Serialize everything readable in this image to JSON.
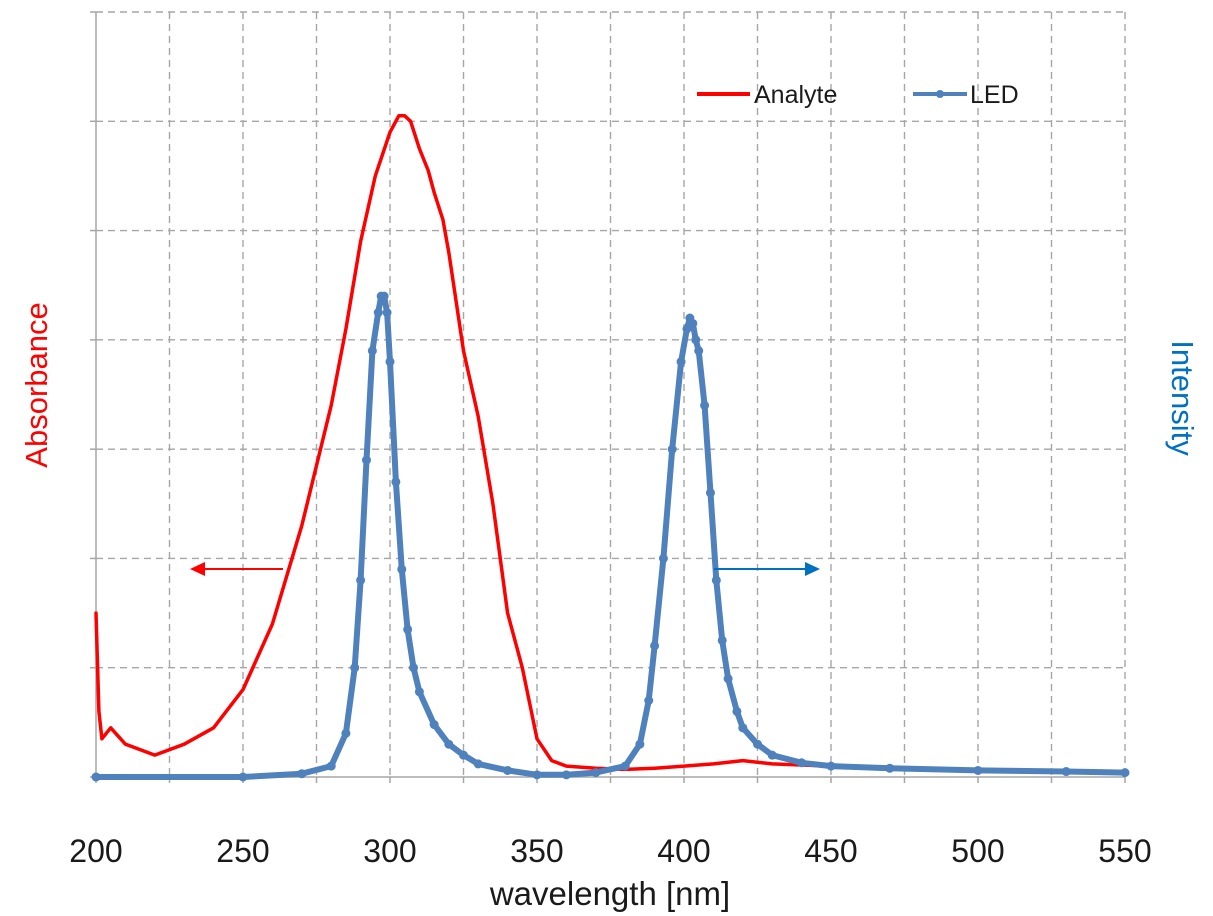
{
  "chart_data": {
    "type": "line",
    "title": "",
    "xlabel": "wavelength [nm]",
    "ylabel_left": "Absorbance",
    "ylabel_right": "Intensity",
    "xlim": [
      200,
      550
    ],
    "ylim": [
      0,
      7
    ],
    "x_ticks": [
      200,
      250,
      300,
      350,
      400,
      450,
      500,
      550
    ],
    "x_tick_labels": [
      "200",
      "250",
      "300",
      "350",
      "400",
      "450",
      "500",
      "550"
    ],
    "y_tick_labels_shown": false,
    "y_gridlines": [
      1,
      2,
      3,
      4,
      5,
      6,
      7
    ],
    "grid": true,
    "grid_style": "dashed",
    "legend_position": "top-right",
    "series": [
      {
        "name": "Analyte",
        "color": "#ff0000",
        "marker": "none",
        "axis": "left",
        "x": [
          200,
          201,
          202,
          205,
          210,
          220,
          230,
          240,
          250,
          260,
          270,
          280,
          285,
          290,
          295,
          300,
          303,
          305,
          307,
          310,
          313,
          315,
          318,
          320,
          325,
          330,
          335,
          340,
          345,
          350,
          355,
          360,
          370,
          380,
          390,
          400,
          410,
          420,
          430,
          450,
          470,
          500,
          520,
          550
        ],
        "y": [
          1.5,
          0.6,
          0.35,
          0.45,
          0.3,
          0.2,
          0.3,
          0.45,
          0.8,
          1.4,
          2.3,
          3.4,
          4.1,
          4.9,
          5.5,
          5.9,
          6.05,
          6.05,
          6.0,
          5.75,
          5.55,
          5.35,
          5.1,
          4.8,
          3.9,
          3.3,
          2.5,
          1.5,
          1.0,
          0.35,
          0.15,
          0.1,
          0.08,
          0.07,
          0.08,
          0.1,
          0.12,
          0.15,
          0.12,
          0.1,
          0.08,
          0.07,
          0.06,
          0.05
        ]
      },
      {
        "name": "LED",
        "color": "#4f81bd",
        "marker": "circle",
        "axis": "right",
        "x": [
          200,
          250,
          270,
          280,
          285,
          288,
          290,
          292,
          294,
          296,
          297,
          298,
          299,
          300,
          302,
          304,
          306,
          308,
          310,
          315,
          320,
          325,
          330,
          340,
          350,
          360,
          370,
          380,
          385,
          388,
          390,
          393,
          396,
          399,
          401,
          402,
          403,
          404,
          405,
          407,
          409,
          411,
          413,
          415,
          418,
          420,
          425,
          430,
          440,
          450,
          470,
          500,
          530,
          550
        ],
        "y": [
          0,
          0,
          0.03,
          0.1,
          0.4,
          1.0,
          1.8,
          2.9,
          3.9,
          4.25,
          4.4,
          4.4,
          4.25,
          3.8,
          2.7,
          1.9,
          1.35,
          1.0,
          0.78,
          0.48,
          0.3,
          0.2,
          0.12,
          0.06,
          0.02,
          0.02,
          0.04,
          0.1,
          0.3,
          0.7,
          1.2,
          2.0,
          3.0,
          3.8,
          4.1,
          4.2,
          4.15,
          4.0,
          3.9,
          3.4,
          2.6,
          1.8,
          1.25,
          0.9,
          0.6,
          0.45,
          0.3,
          0.2,
          0.13,
          0.1,
          0.08,
          0.06,
          0.05,
          0.04
        ]
      }
    ],
    "annotations": [
      {
        "type": "arrow",
        "direction": "left",
        "color": "#ff0000",
        "meaning": "Analyte uses left axis"
      },
      {
        "type": "arrow",
        "direction": "right",
        "color": "#0070c0",
        "meaning": "LED uses right axis"
      }
    ],
    "colors": {
      "left_title": "#ff0000",
      "right_title": "#0070c0",
      "grid": "#a6a6a6",
      "axis": "#a6a6a6"
    }
  }
}
